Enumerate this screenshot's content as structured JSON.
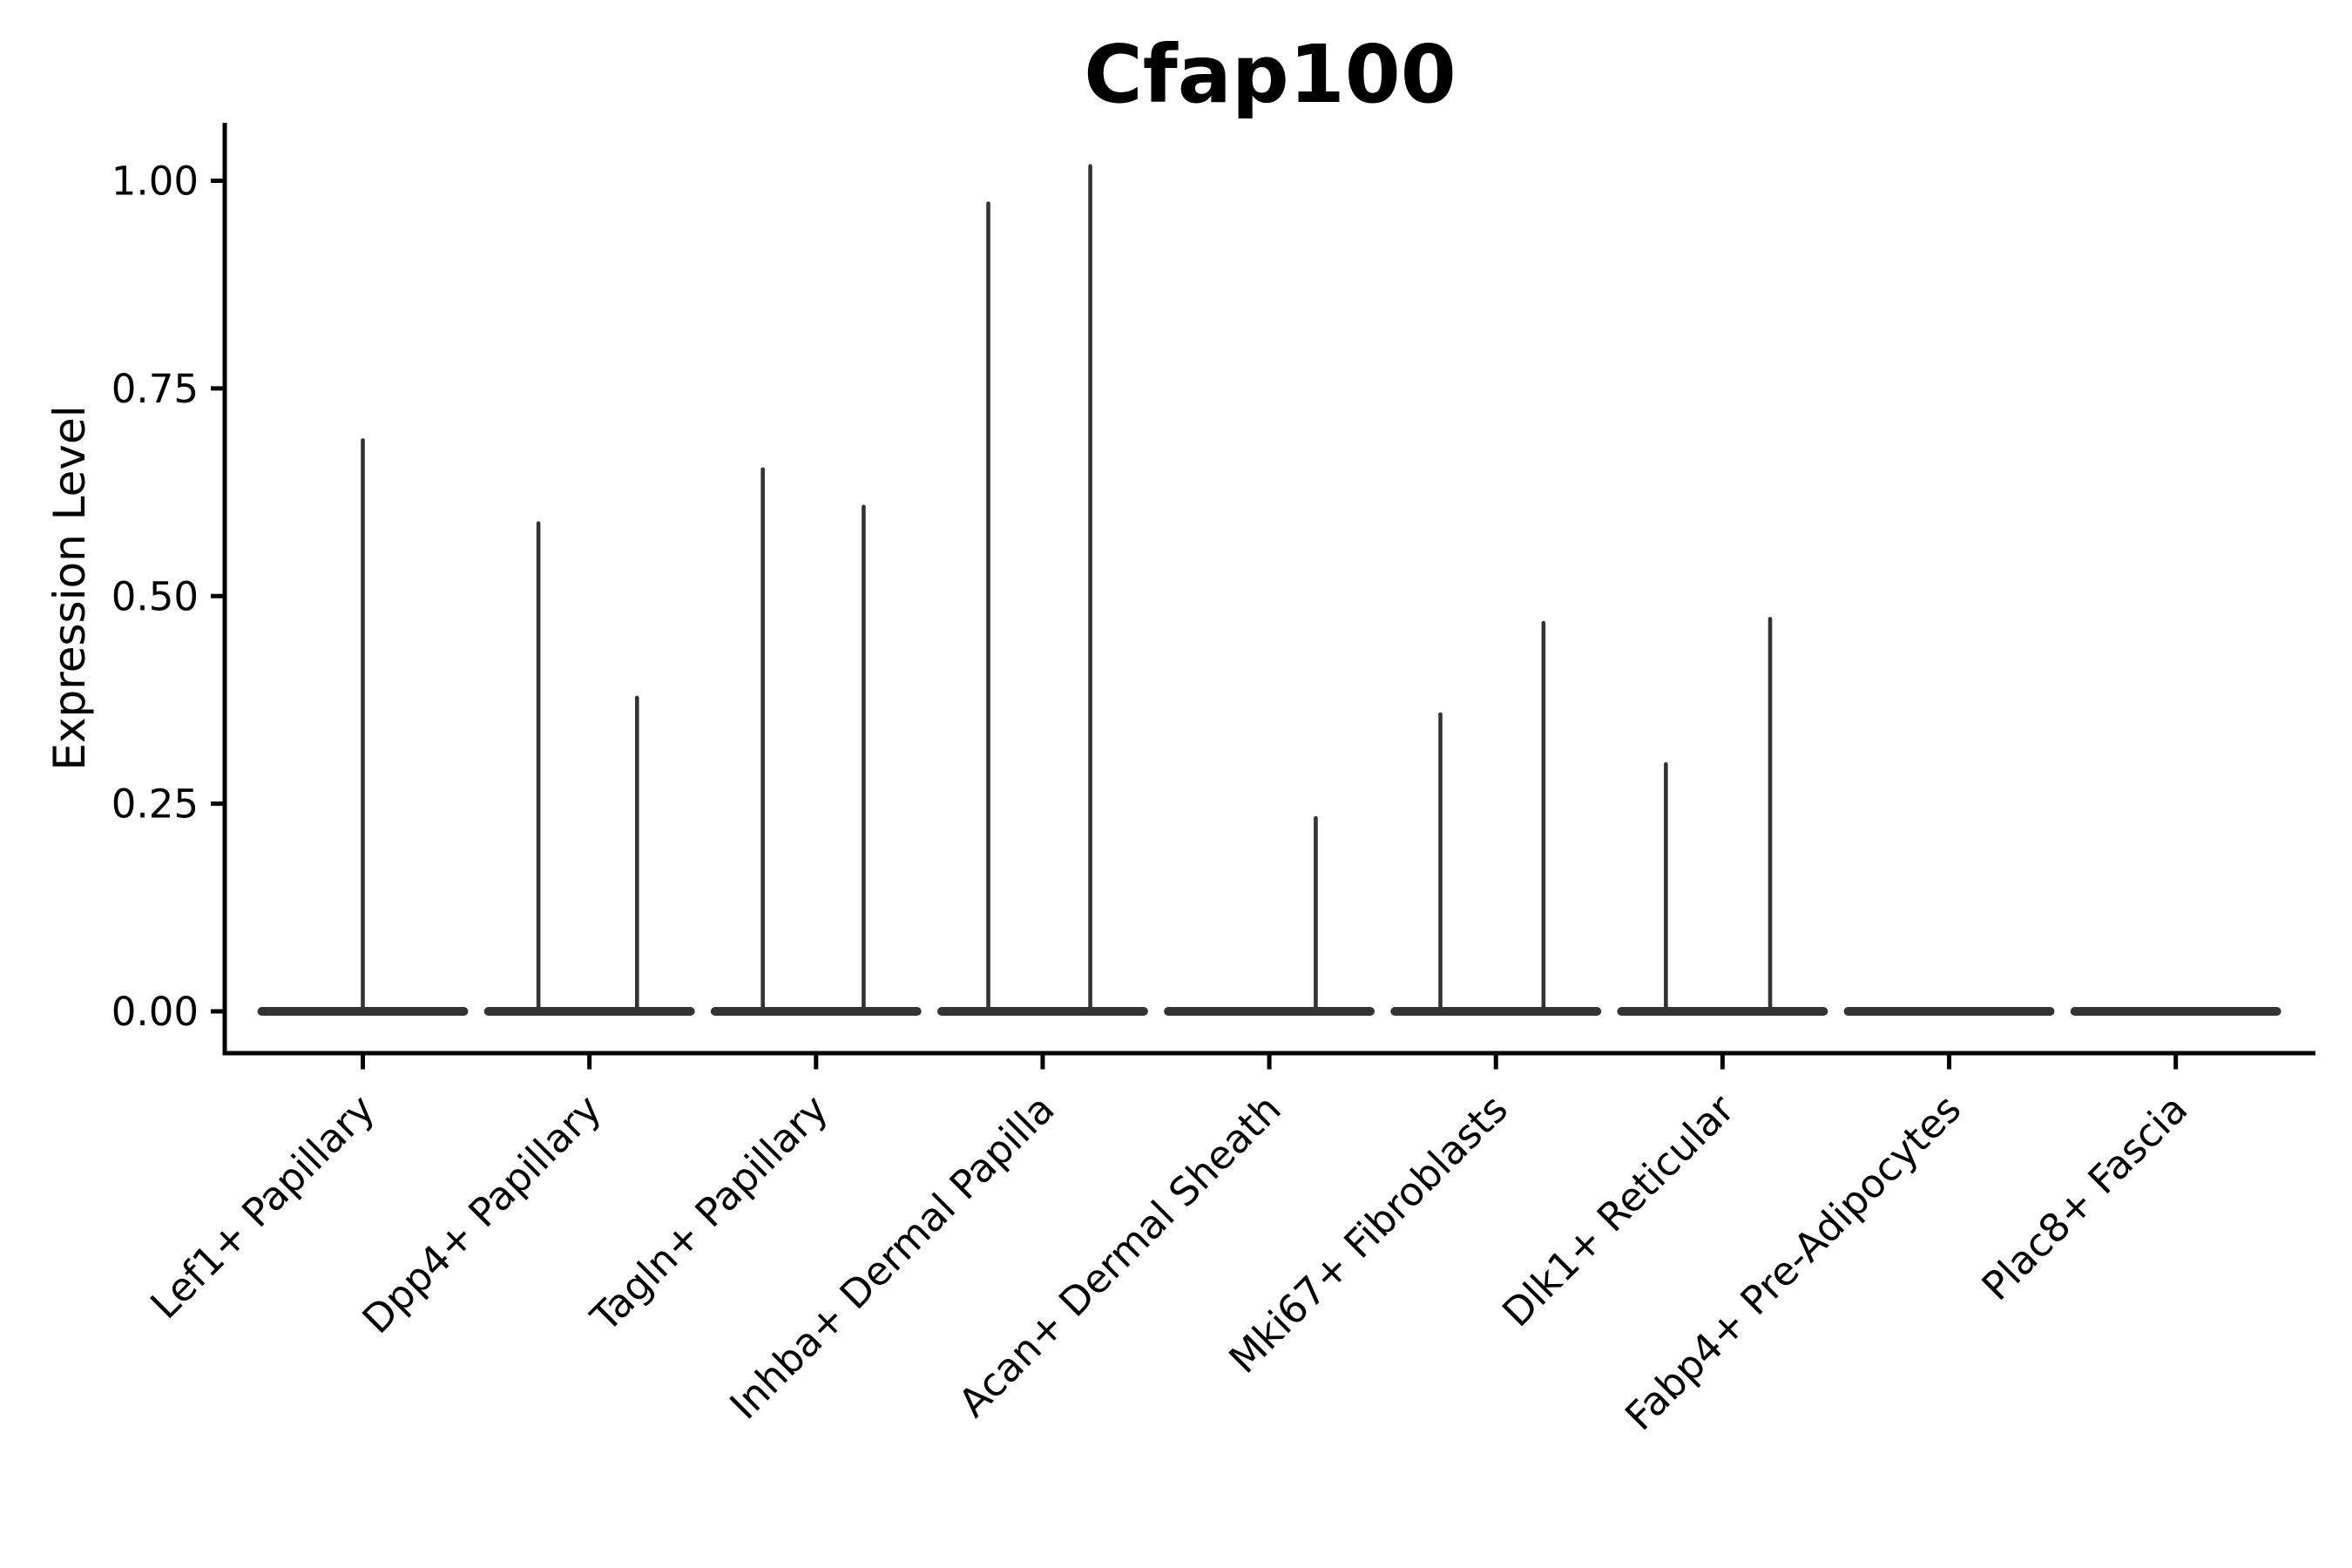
{
  "chart_data": {
    "type": "violin",
    "title": "Cfap100",
    "ylabel": "Expression Level",
    "xlabel": "",
    "y_ticks": [
      "0.00",
      "0.25",
      "0.50",
      "0.75",
      "1.00"
    ],
    "y_tick_values": [
      0,
      0.25,
      0.5,
      0.75,
      1.0
    ],
    "ylim": [
      -0.05,
      1.07
    ],
    "grid": false,
    "legend": null,
    "x_tick_rotation_deg": 45,
    "categories": [
      "Lef1+ Papillary",
      "Dpp4+ Papillary",
      "Tagln+ Papillary",
      "Inhba+ Dermal Papilla",
      "Acan+ Dermal Sheath",
      "Mki67+ Fibroblasts",
      "Dlk1+ Reticular",
      "Fabp4+ Pre-Adipocytes",
      "Plac8+ Fascia"
    ],
    "violins": [
      {
        "category": "Lef1+ Papillary",
        "base_halfwidth_frac": 0.465,
        "spikes": [
          {
            "offset_frac": 0.0,
            "max": 0.69
          }
        ]
      },
      {
        "category": "Dpp4+ Papillary",
        "base_halfwidth_frac": 0.465,
        "spikes": [
          {
            "offset_frac": -0.225,
            "max": 0.59
          },
          {
            "offset_frac": 0.21,
            "max": 0.38
          }
        ]
      },
      {
        "category": "Tagln+ Papillary",
        "base_halfwidth_frac": 0.465,
        "spikes": [
          {
            "offset_frac": -0.235,
            "max": 0.655
          },
          {
            "offset_frac": 0.21,
            "max": 0.61
          }
        ]
      },
      {
        "category": "Inhba+ Dermal Papilla",
        "base_halfwidth_frac": 0.465,
        "spikes": [
          {
            "offset_frac": -0.24,
            "max": 0.975
          },
          {
            "offset_frac": 0.21,
            "max": 1.02
          }
        ]
      },
      {
        "category": "Acan+ Dermal Sheath",
        "base_halfwidth_frac": 0.465,
        "spikes": [
          {
            "offset_frac": 0.205,
            "max": 0.235
          }
        ]
      },
      {
        "category": "Mki67+ Fibroblasts",
        "base_halfwidth_frac": 0.465,
        "spikes": [
          {
            "offset_frac": -0.245,
            "max": 0.36
          },
          {
            "offset_frac": 0.21,
            "max": 0.47
          }
        ]
      },
      {
        "category": "Dlk1+ Reticular",
        "base_halfwidth_frac": 0.465,
        "spikes": [
          {
            "offset_frac": -0.25,
            "max": 0.3
          },
          {
            "offset_frac": 0.21,
            "max": 0.475
          }
        ]
      },
      {
        "category": "Fabp4+ Pre-Adipocytes",
        "base_halfwidth_frac": 0.465,
        "spikes": []
      },
      {
        "category": "Plac8+ Fascia",
        "base_halfwidth_frac": 0.465,
        "spikes": []
      }
    ],
    "colors": {
      "violin": "#333333",
      "axis": "#000000",
      "text": "#000000",
      "background": "#ffffff"
    }
  }
}
